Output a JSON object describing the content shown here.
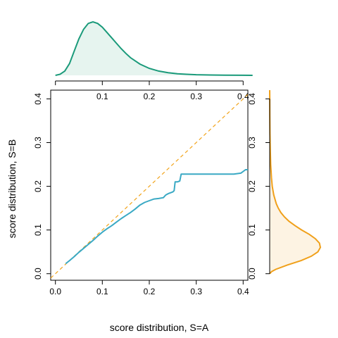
{
  "chart_data": [
    {
      "id": "qq",
      "type": "line",
      "xlabel": "score distribution, S=A",
      "ylabel": "score distribution, S=B",
      "xlim": [
        -0.01,
        0.41
      ],
      "ylim": [
        -0.015,
        0.42
      ],
      "x_ticks": [
        0.0,
        0.1,
        0.2,
        0.3,
        0.4
      ],
      "x_tick_labels": [
        "0.0",
        "0.1",
        "0.2",
        "0.3",
        "0.4"
      ],
      "y_ticks": [
        0.0,
        0.1,
        0.2,
        0.3,
        0.4
      ],
      "y_tick_labels": [
        "0.0",
        "0.1",
        "0.2",
        "0.3",
        "0.4"
      ],
      "grid": false,
      "series": [
        {
          "role": "quantile-quantile curve",
          "color": "#3aa9c4",
          "style": "solid",
          "x": [
            0.022,
            0.03,
            0.04,
            0.05,
            0.06,
            0.07,
            0.08,
            0.09,
            0.1,
            0.11,
            0.12,
            0.13,
            0.14,
            0.15,
            0.16,
            0.17,
            0.18,
            0.19,
            0.2,
            0.21,
            0.22,
            0.23,
            0.235,
            0.24,
            0.25,
            0.253,
            0.255,
            0.26,
            0.265,
            0.268,
            0.3,
            0.35,
            0.38,
            0.395,
            0.405,
            0.41
          ],
          "y": [
            0.023,
            0.03,
            0.039,
            0.049,
            0.058,
            0.067,
            0.076,
            0.086,
            0.095,
            0.103,
            0.11,
            0.118,
            0.126,
            0.133,
            0.14,
            0.148,
            0.157,
            0.163,
            0.167,
            0.171,
            0.172,
            0.174,
            0.18,
            0.183,
            0.187,
            0.19,
            0.21,
            0.21,
            0.212,
            0.228,
            0.228,
            0.228,
            0.228,
            0.23,
            0.238,
            0.238
          ]
        },
        {
          "role": "identity line",
          "color": "#f2a41b",
          "style": "dashed",
          "x": [
            -0.01,
            0.41
          ],
          "y": [
            -0.01,
            0.41
          ]
        }
      ]
    },
    {
      "id": "density-a",
      "type": "area",
      "orientation": "horizontal",
      "xlim": [
        -0.01,
        0.41
      ],
      "x_ticks": [
        0.0,
        0.1,
        0.2,
        0.3,
        0.4
      ],
      "x_tick_labels": [
        "0.1",
        "0.2",
        "0.3",
        "0.4"
      ],
      "x_tick_labeled": [
        0.1,
        0.2,
        0.3,
        0.4
      ],
      "color": "#1a9a7a",
      "fill": "#e6f4ef",
      "x": [
        0.0,
        0.01,
        0.02,
        0.03,
        0.04,
        0.05,
        0.06,
        0.07,
        0.08,
        0.09,
        0.1,
        0.11,
        0.12,
        0.13,
        0.14,
        0.15,
        0.16,
        0.18,
        0.2,
        0.22,
        0.24,
        0.26,
        0.28,
        0.3,
        0.33,
        0.36,
        0.4,
        0.42
      ],
      "y": [
        0.0,
        0.02,
        0.08,
        0.22,
        0.45,
        0.68,
        0.86,
        0.97,
        1.0,
        0.97,
        0.9,
        0.8,
        0.7,
        0.6,
        0.5,
        0.41,
        0.33,
        0.21,
        0.13,
        0.08,
        0.05,
        0.03,
        0.02,
        0.012,
        0.006,
        0.003,
        0.001,
        0.0
      ]
    },
    {
      "id": "density-b",
      "type": "area",
      "orientation": "vertical",
      "ylim": [
        -0.015,
        0.42
      ],
      "color": "#f0a01a",
      "fill": "#fdf3e3",
      "y": [
        0.0,
        0.005,
        0.01,
        0.02,
        0.03,
        0.04,
        0.05,
        0.06,
        0.07,
        0.08,
        0.09,
        0.1,
        0.11,
        0.12,
        0.13,
        0.14,
        0.15,
        0.16,
        0.18,
        0.2,
        0.22,
        0.25,
        0.28,
        0.32,
        0.36,
        0.4,
        0.42
      ],
      "x": [
        0.0,
        0.04,
        0.12,
        0.35,
        0.62,
        0.82,
        0.95,
        1.0,
        0.98,
        0.9,
        0.78,
        0.63,
        0.5,
        0.38,
        0.29,
        0.22,
        0.17,
        0.13,
        0.08,
        0.05,
        0.035,
        0.02,
        0.012,
        0.006,
        0.003,
        0.001,
        0.0
      ]
    }
  ]
}
